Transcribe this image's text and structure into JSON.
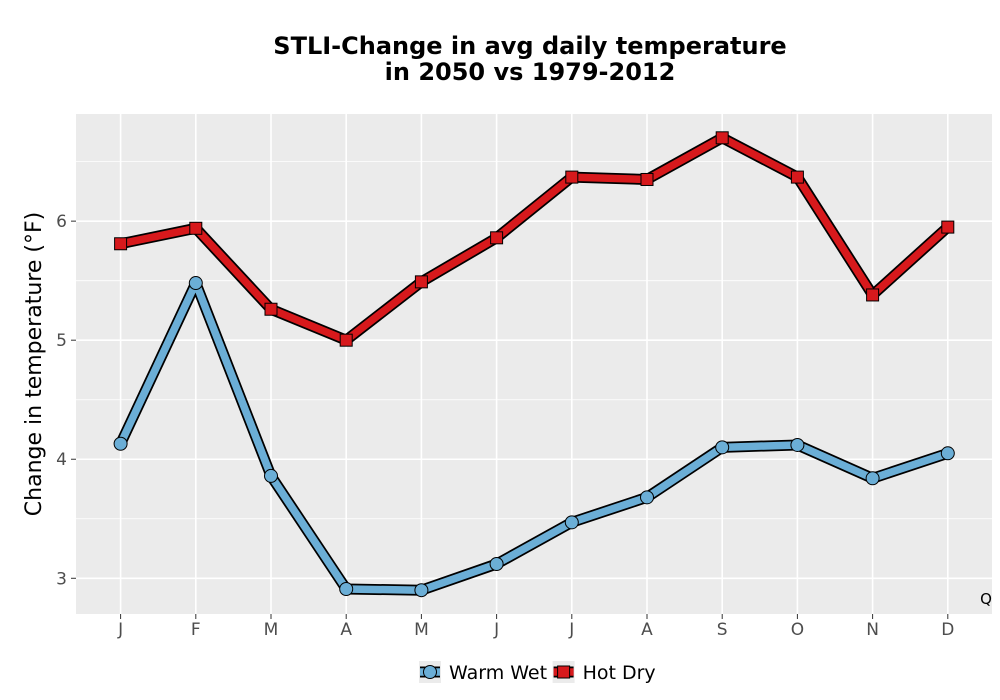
{
  "chart_data": {
    "type": "line",
    "title_line1": "STLI-Change in avg daily temperature",
    "title_line2": "in 2050 vs 1979-2012",
    "xlabel": "",
    "ylabel": "Change in temperature (°F)",
    "categories": [
      "J",
      "F",
      "M",
      "A",
      "M",
      "J",
      "J",
      "A",
      "S",
      "O",
      "N",
      "D"
    ],
    "ylim": [
      2.7,
      6.9
    ],
    "yticks": [
      3,
      4,
      5,
      6
    ],
    "grid": true,
    "legend_position": "bottom",
    "corner_label": "Q",
    "series": [
      {
        "name": "Warm Wet",
        "marker": "circle",
        "color": "#6baed6",
        "values": [
          4.13,
          5.48,
          3.86,
          2.91,
          2.9,
          3.12,
          3.47,
          3.68,
          4.1,
          4.12,
          3.84,
          4.05
        ]
      },
      {
        "name": "Hot Dry",
        "marker": "square",
        "color": "#d7191c",
        "values": [
          5.81,
          5.94,
          5.26,
          5.0,
          5.49,
          5.86,
          6.37,
          6.35,
          6.7,
          6.37,
          5.38,
          5.95
        ]
      }
    ]
  }
}
